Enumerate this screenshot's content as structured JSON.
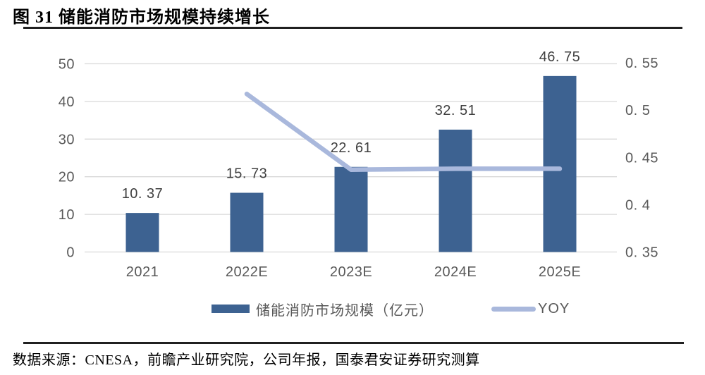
{
  "title": "图 31 储能消防市场规模持续增长",
  "source": "数据来源：CNESA，前瞻产业研究院，公司年报，国泰君安证券研究测算",
  "colors": {
    "bar": "#3D6291",
    "line": "#A9B8DC",
    "grid": "#D9D9D9",
    "tick_label": "#595959",
    "data_label": "#3F3F3F",
    "rule": "#202020"
  },
  "chart_data": {
    "type": "bar",
    "categories": [
      "2021",
      "2022E",
      "2023E",
      "2024E",
      "2025E"
    ],
    "series": [
      {
        "name": "储能消防市场规模（亿元）",
        "type": "bar",
        "axis": "left",
        "values": [
          10.37,
          15.73,
          22.61,
          32.51,
          46.75
        ],
        "value_labels": [
          "10. 37",
          "15. 73",
          "22. 61",
          "32. 51",
          "46. 75"
        ],
        "color": "#3D6291"
      },
      {
        "name": "YOY",
        "type": "line",
        "axis": "right",
        "values": [
          null,
          0.517,
          0.437,
          0.438,
          0.438
        ],
        "color": "#A9B8DC"
      }
    ],
    "left_axis": {
      "min": 0,
      "max": 50,
      "values": [
        0,
        10,
        20,
        30,
        40,
        50
      ],
      "labels": [
        "0",
        "10",
        "20",
        "30",
        "40",
        "50"
      ]
    },
    "right_axis": {
      "min": 0.35,
      "max": 0.55,
      "values": [
        0.35,
        0.4,
        0.45,
        0.5,
        0.55
      ],
      "labels": [
        "0. 35",
        "0. 4",
        "0. 45",
        "0. 5",
        "0. 55"
      ]
    },
    "grid": true,
    "legend_position": "bottom",
    "legend": [
      {
        "label": "储能消防市场规模（亿元）",
        "swatch": "bar"
      },
      {
        "label": "YOY",
        "swatch": "line"
      }
    ]
  }
}
